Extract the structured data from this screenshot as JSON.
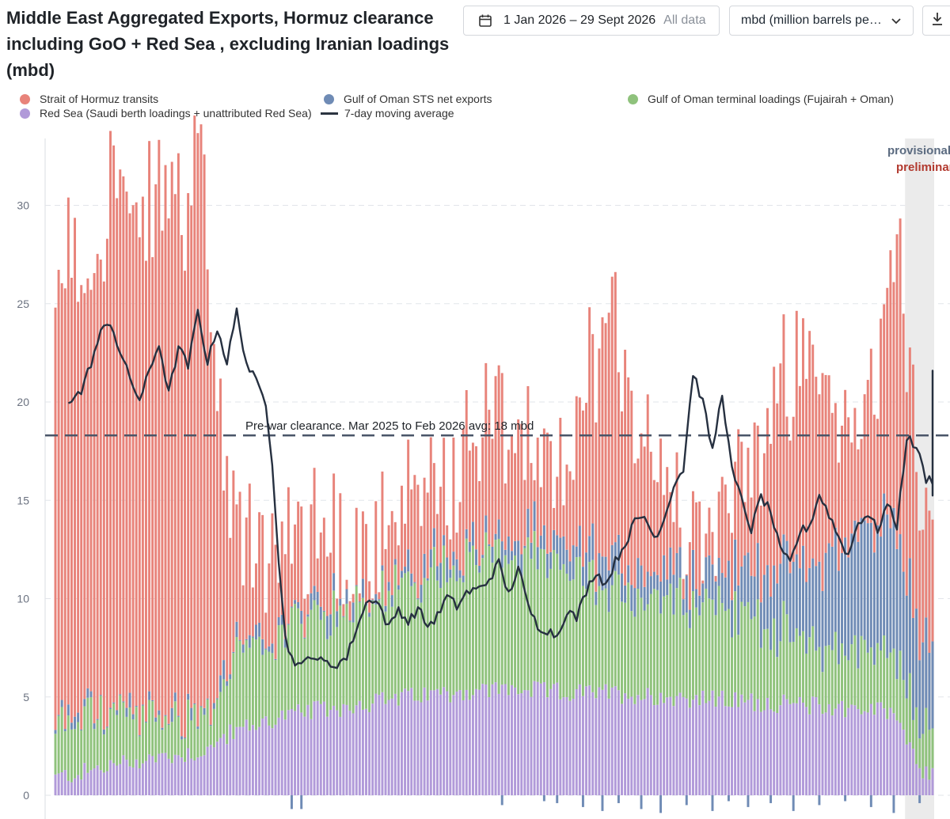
{
  "header": {
    "title": "Middle East Aggregated Exports, Hormuz clearance including GoO + Red Sea , excluding Iranian loadings (mbd)",
    "date_range": "1 Jan 2026 – 29 Sept 2026",
    "all_data": "All data",
    "unit": "mbd (million barrels per day)",
    "calendar_icon": "calendar-icon",
    "chevron_icon": "chevron-down-icon",
    "download_icon": "download-icon"
  },
  "chart_data": {
    "type": "bar",
    "stacked": true,
    "title": "Middle East Aggregated Exports, Hormuz clearance including GoO + Red Sea , excluding Iranian loadings (mbd)",
    "ylim": [
      -1.2,
      33.2
    ],
    "yticks": [
      0,
      5,
      10,
      15,
      20,
      25,
      30
    ],
    "grid": true,
    "legend_position": "top",
    "colors": {
      "hormuz": "#e8837a",
      "sts": "#6f8bb5",
      "goo": "#8fc27c",
      "redsea": "#b19ad9",
      "ma": "#263040",
      "ref": "#4a5568",
      "provisional": "#5b6b80",
      "preliminary": "#b23a2f",
      "shade": "#ebebeb"
    },
    "series_labels": {
      "hormuz": "Strait of Hormuz transits",
      "sts": "Gulf of Oman STS net exports",
      "goo": "Gulf of Oman terminal loadings (Fujairah + Oman)",
      "redsea": "Red Sea (Saudi berth loadings + unattributed Red Sea)",
      "ma": "7-day moving average"
    },
    "x": {
      "start": "2026-01-01",
      "end": "2026-09-29"
    },
    "reference_line": {
      "value": 18.3,
      "label": "Pre-war clearance. Mar 2025 to Feb 2026 avg: 18 mbd"
    },
    "annotations": {
      "provisional": "provisional",
      "preliminary": "preliminary"
    },
    "provisional_from": "2026-09-21",
    "anchors": {
      "hormuz": [
        [
          0,
          18.5
        ],
        [
          3,
          24
        ],
        [
          10,
          22
        ],
        [
          18,
          28
        ],
        [
          25,
          23
        ],
        [
          33,
          27
        ],
        [
          40,
          26
        ],
        [
          46,
          28
        ],
        [
          48,
          20
        ],
        [
          52,
          10
        ],
        [
          55,
          6.5
        ],
        [
          58,
          5.5
        ],
        [
          62,
          4.5
        ],
        [
          70,
          4
        ],
        [
          80,
          4
        ],
        [
          90,
          3
        ],
        [
          100,
          2
        ],
        [
          105,
          2
        ],
        [
          110,
          3
        ],
        [
          115,
          5
        ],
        [
          120,
          3.5
        ],
        [
          128,
          5
        ],
        [
          135,
          6
        ],
        [
          142,
          5
        ],
        [
          148,
          4
        ],
        [
          155,
          3
        ],
        [
          160,
          6
        ],
        [
          165,
          10
        ],
        [
          170,
          12
        ],
        [
          175,
          11
        ],
        [
          180,
          7
        ],
        [
          185,
          6
        ],
        [
          190,
          5
        ],
        [
          195,
          3
        ],
        [
          200,
          3
        ],
        [
          205,
          3
        ],
        [
          210,
          5
        ],
        [
          215,
          6
        ],
        [
          222,
          8
        ],
        [
          230,
          10
        ],
        [
          238,
          8
        ],
        [
          245,
          5
        ],
        [
          250,
          6
        ],
        [
          255,
          9
        ],
        [
          260,
          14
        ],
        [
          264,
          12
        ],
        [
          268,
          7
        ]
      ],
      "sts": [
        [
          0,
          0
        ],
        [
          50,
          0
        ],
        [
          52,
          0.4
        ],
        [
          60,
          0.3
        ],
        [
          70,
          0.3
        ],
        [
          80,
          0.4
        ],
        [
          90,
          0.5
        ],
        [
          100,
          0.5
        ],
        [
          110,
          0.5
        ],
        [
          120,
          0.6
        ],
        [
          130,
          0.6
        ],
        [
          140,
          0.8
        ],
        [
          150,
          0.9
        ],
        [
          160,
          1.1
        ],
        [
          170,
          1.4
        ],
        [
          180,
          1.5
        ],
        [
          190,
          1.5
        ],
        [
          200,
          1.6
        ],
        [
          210,
          2
        ],
        [
          220,
          3
        ],
        [
          230,
          3.5
        ],
        [
          240,
          5
        ],
        [
          250,
          6
        ],
        [
          260,
          7
        ],
        [
          268,
          4
        ]
      ],
      "goo": [
        [
          0,
          2.5
        ],
        [
          10,
          3
        ],
        [
          20,
          2.5
        ],
        [
          30,
          2
        ],
        [
          40,
          2
        ],
        [
          48,
          2
        ],
        [
          52,
          3
        ],
        [
          55,
          3.5
        ],
        [
          60,
          3.5
        ],
        [
          70,
          4.5
        ],
        [
          80,
          4.5
        ],
        [
          90,
          5
        ],
        [
          100,
          5.5
        ],
        [
          110,
          6
        ],
        [
          120,
          6.5
        ],
        [
          130,
          7
        ],
        [
          140,
          7
        ],
        [
          150,
          6.5
        ],
        [
          160,
          6
        ],
        [
          170,
          5.5
        ],
        [
          180,
          5
        ],
        [
          190,
          5
        ],
        [
          200,
          5
        ],
        [
          210,
          4.5
        ],
        [
          220,
          4
        ],
        [
          230,
          3.5
        ],
        [
          240,
          3
        ],
        [
          250,
          3
        ],
        [
          260,
          3
        ],
        [
          268,
          2
        ]
      ],
      "redsea": [
        [
          0,
          0.9
        ],
        [
          10,
          1.2
        ],
        [
          20,
          1.6
        ],
        [
          30,
          1.9
        ],
        [
          40,
          2.1
        ],
        [
          48,
          2.3
        ],
        [
          52,
          3
        ],
        [
          60,
          3.5
        ],
        [
          70,
          4
        ],
        [
          80,
          4.3
        ],
        [
          90,
          4.5
        ],
        [
          100,
          4.8
        ],
        [
          110,
          5
        ],
        [
          120,
          5.2
        ],
        [
          130,
          5.3
        ],
        [
          140,
          5.4
        ],
        [
          150,
          5.3
        ],
        [
          160,
          5.2
        ],
        [
          170,
          5.2
        ],
        [
          180,
          5.1
        ],
        [
          190,
          5
        ],
        [
          200,
          4.9
        ],
        [
          210,
          4.8
        ],
        [
          220,
          4.7
        ],
        [
          230,
          4.6
        ],
        [
          240,
          4.5
        ],
        [
          250,
          4.4
        ],
        [
          260,
          4.2
        ],
        [
          268,
          1
        ]
      ],
      "ma": [
        [
          4,
          20.1
        ],
        [
          8,
          20.5
        ],
        [
          11,
          22
        ],
        [
          14,
          23.5
        ],
        [
          17,
          24.1
        ],
        [
          20,
          22.5
        ],
        [
          23,
          21.2
        ],
        [
          26,
          20.1
        ],
        [
          29,
          21.5
        ],
        [
          32,
          23
        ],
        [
          35,
          20.4
        ],
        [
          38,
          22.8
        ],
        [
          41,
          21.8
        ],
        [
          44,
          24.6
        ],
        [
          47,
          22
        ],
        [
          50,
          23.8
        ],
        [
          53,
          22
        ],
        [
          56,
          24.6
        ],
        [
          59,
          22
        ],
        [
          62,
          21
        ],
        [
          65,
          20
        ],
        [
          67,
          17
        ],
        [
          69,
          12
        ],
        [
          71,
          8
        ],
        [
          73,
          7
        ],
        [
          76,
          6.5
        ],
        [
          79,
          7.2
        ],
        [
          82,
          6.8
        ],
        [
          86,
          6.6
        ],
        [
          90,
          7
        ],
        [
          93,
          8.5
        ],
        [
          97,
          10.1
        ],
        [
          100,
          9.7
        ],
        [
          103,
          8.5
        ],
        [
          106,
          9.5
        ],
        [
          109,
          8.8
        ],
        [
          112,
          9.5
        ],
        [
          115,
          8.6
        ],
        [
          118,
          9.1
        ],
        [
          121,
          10.1
        ],
        [
          124,
          9.6
        ],
        [
          127,
          10.3
        ],
        [
          131,
          10.5
        ],
        [
          134,
          11
        ],
        [
          137,
          11.8
        ],
        [
          140,
          10.2
        ],
        [
          143,
          11.6
        ],
        [
          146,
          9.6
        ],
        [
          149,
          8.6
        ],
        [
          152,
          8.4
        ],
        [
          155,
          8.1
        ],
        [
          158,
          9.4
        ],
        [
          161,
          9
        ],
        [
          164,
          10.4
        ],
        [
          167,
          11.4
        ],
        [
          170,
          10.7
        ],
        [
          173,
          11.9
        ],
        [
          176,
          12.8
        ],
        [
          179,
          13.9
        ],
        [
          182,
          14.2
        ],
        [
          185,
          13.1
        ],
        [
          188,
          14
        ],
        [
          191,
          15.8
        ],
        [
          194,
          16.6
        ],
        [
          197,
          21.5
        ],
        [
          200,
          20
        ],
        [
          203,
          17.5
        ],
        [
          206,
          20.5
        ],
        [
          209,
          16.5
        ],
        [
          212,
          15
        ],
        [
          215,
          13.5
        ],
        [
          218,
          15.2
        ],
        [
          221,
          14.4
        ],
        [
          224,
          12.4
        ],
        [
          227,
          11.8
        ],
        [
          230,
          13.4
        ],
        [
          233,
          13.7
        ],
        [
          236,
          15.3
        ],
        [
          239,
          14.3
        ],
        [
          242,
          13.1
        ],
        [
          245,
          12.2
        ],
        [
          248,
          13.9
        ],
        [
          251,
          14.3
        ],
        [
          254,
          13.5
        ],
        [
          257,
          14.8
        ],
        [
          260,
          13.7
        ],
        [
          263,
          18.2
        ],
        [
          266,
          17.7
        ],
        [
          269,
          16.1
        ],
        [
          272,
          16
        ],
        [
          275,
          15.3
        ],
        [
          278,
          19.1
        ],
        [
          281,
          21.3
        ],
        [
          284,
          21.6
        ],
        [
          287,
          21.1
        ],
        [
          290,
          16.5
        ]
      ]
    },
    "wiggle": {
      "hormuz": 6,
      "sts": 1.5,
      "goo": 2.2,
      "redsea": 1
    },
    "negatives": [
      [
        73,
        -0.7
      ],
      [
        76,
        -0.7
      ],
      [
        138,
        -0.5
      ],
      [
        151,
        -0.3
      ],
      [
        155,
        -0.4
      ],
      [
        163,
        -0.6
      ],
      [
        169,
        -0.8
      ],
      [
        174,
        -0.4
      ],
      [
        181,
        -0.7
      ],
      [
        187,
        -0.9
      ],
      [
        195,
        -0.5
      ],
      [
        203,
        -0.8
      ],
      [
        208,
        -0.3
      ],
      [
        214,
        -0.6
      ],
      [
        221,
        -0.4
      ],
      [
        228,
        -0.8
      ],
      [
        236,
        -0.5
      ],
      [
        244,
        -0.3
      ],
      [
        252,
        -0.6
      ],
      [
        259,
        -0.9
      ],
      [
        267,
        -0.4
      ],
      [
        274,
        -0.3
      ],
      [
        282,
        -0.5
      ]
    ]
  },
  "legend": {
    "hormuz": "Strait of Hormuz transits",
    "sts": "Gulf of Oman STS net exports",
    "goo": "Gulf of Oman terminal loadings (Fujairah + Oman)",
    "redsea": "Red Sea (Saudi berth loadings + unattributed Red Sea)",
    "ma": "7-day moving average"
  }
}
